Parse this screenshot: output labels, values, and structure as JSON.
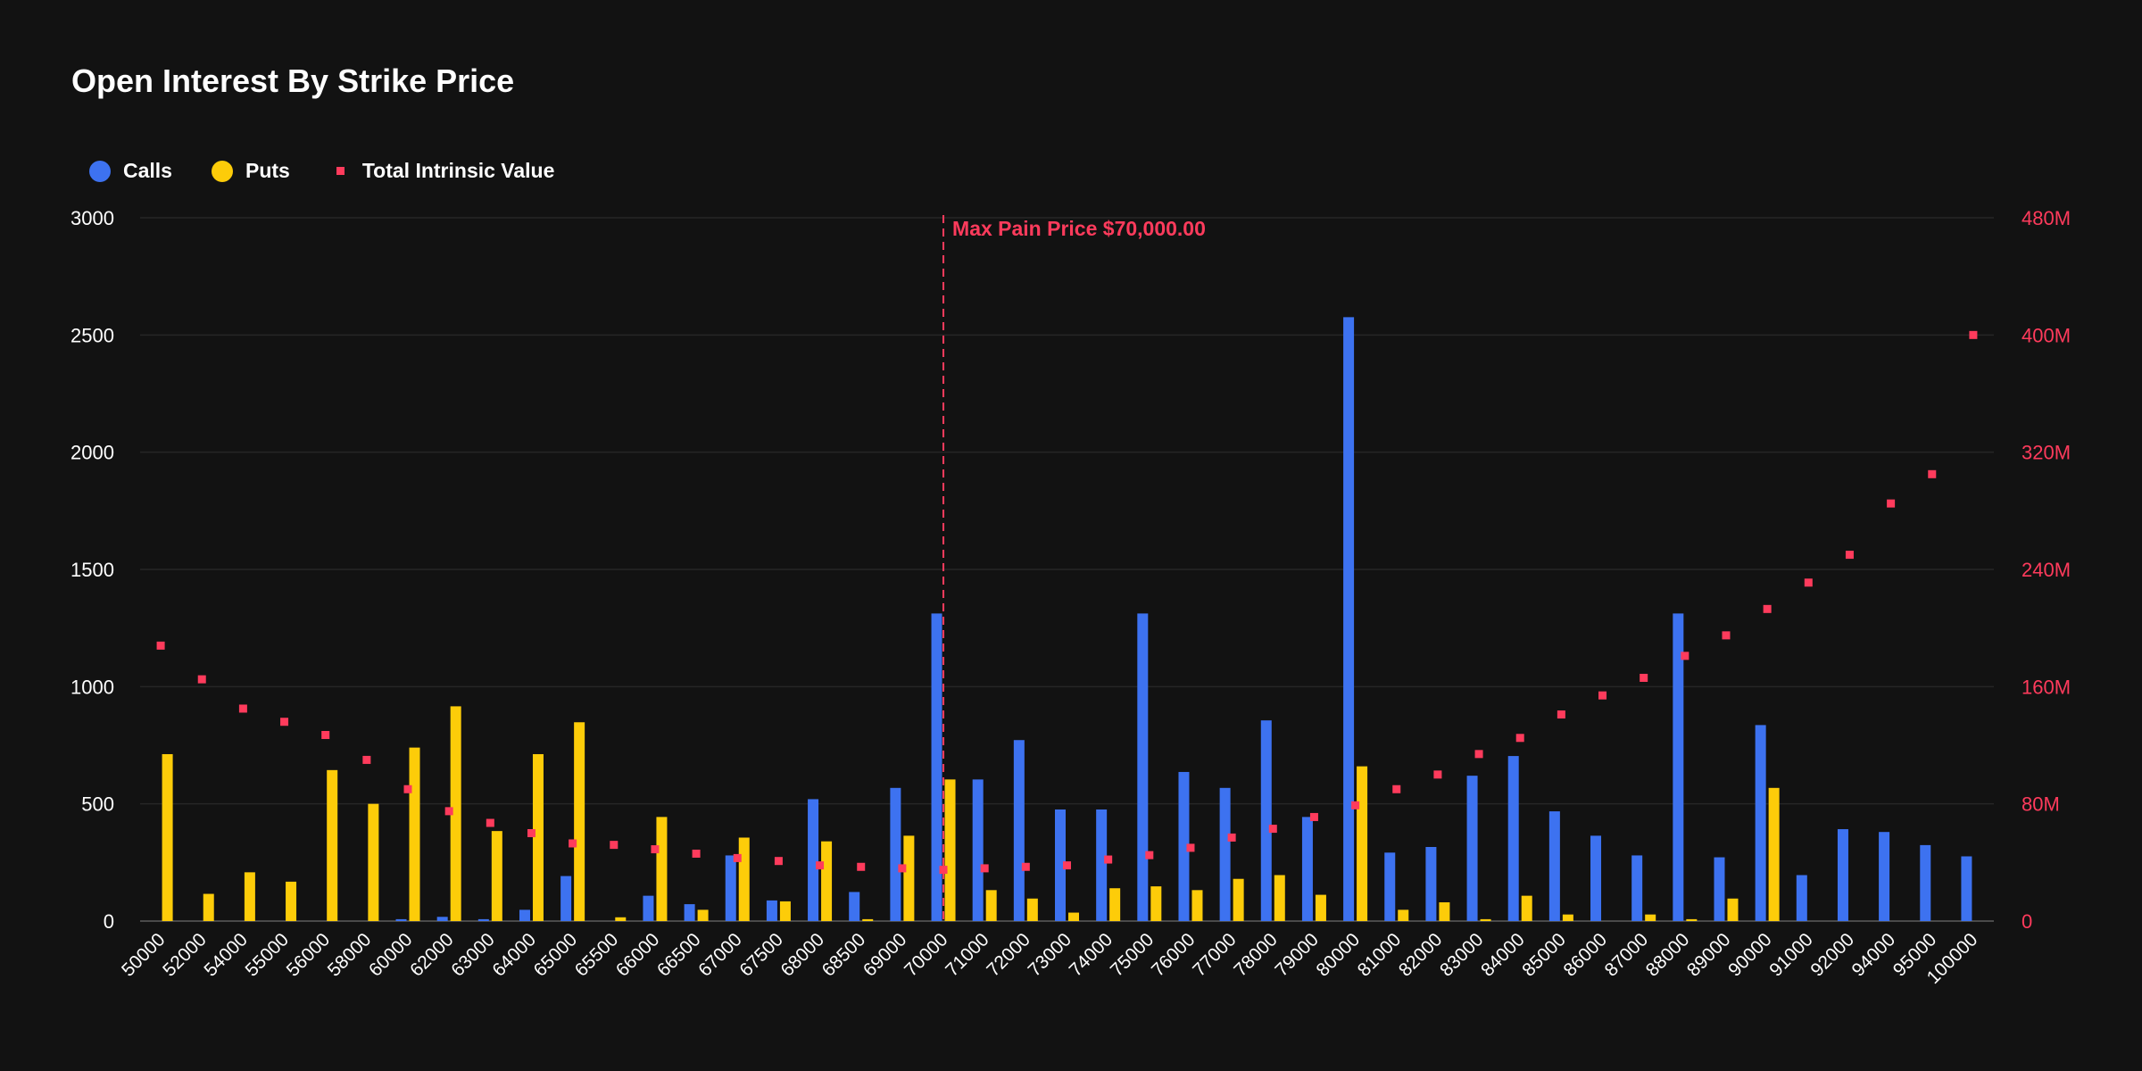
{
  "chart_data": {
    "type": "bar",
    "title": "Open Interest By Strike Price",
    "categories": [
      "50000",
      "52000",
      "54000",
      "55000",
      "56000",
      "58000",
      "60000",
      "62000",
      "63000",
      "64000",
      "65000",
      "65500",
      "66000",
      "66500",
      "67000",
      "67500",
      "68000",
      "68500",
      "69000",
      "70000",
      "71000",
      "72000",
      "73000",
      "74000",
      "75000",
      "76000",
      "77000",
      "78000",
      "79000",
      "80000",
      "81000",
      "82000",
      "83000",
      "84000",
      "85000",
      "86000",
      "87000",
      "88000",
      "89000",
      "90000",
      "91000",
      "92000",
      "94000",
      "95000",
      "100000"
    ],
    "series": [
      {
        "name": "Calls",
        "axis": "left",
        "color": "#3d72f0",
        "values": [
          0,
          0,
          0,
          0,
          0,
          0,
          8,
          18,
          8,
          48,
          192,
          0,
          108,
          72,
          280,
          88,
          520,
          124,
          568,
          1312,
          604,
          772,
          476,
          476,
          1312,
          636,
          568,
          856,
          444,
          2576,
          292,
          316,
          620,
          704,
          468,
          364,
          280,
          1312,
          272,
          836,
          196,
          392,
          380,
          324,
          276
        ]
      },
      {
        "name": "Puts",
        "axis": "left",
        "color": "#fdcc09",
        "values": [
          712,
          116,
          208,
          168,
          644,
          500,
          740,
          916,
          384,
          712,
          848,
          16,
          444,
          48,
          356,
          84,
          340,
          8,
          364,
          604,
          132,
          96,
          36,
          140,
          148,
          132,
          180,
          196,
          112,
          660,
          48,
          80,
          8,
          108,
          28,
          0,
          28,
          8,
          96,
          568,
          0,
          0,
          0,
          0,
          0
        ]
      },
      {
        "name": "Total Intrinsic Value",
        "axis": "right",
        "type": "scatter",
        "color": "#ff3b5c",
        "values": [
          188,
          165,
          145,
          136,
          127,
          110,
          90,
          75,
          67,
          60,
          53,
          52,
          49,
          46,
          43,
          41,
          38,
          37,
          36,
          35,
          36,
          37,
          38,
          42,
          45,
          50,
          57,
          63,
          71,
          79,
          90,
          100,
          114,
          125,
          141,
          154,
          166,
          181,
          195,
          213,
          231,
          250,
          285,
          305,
          400
        ]
      }
    ],
    "y_left": {
      "min": 0,
      "max": 3000,
      "ticks": [
        "0",
        "500",
        "1000",
        "1500",
        "2000",
        "2500",
        "3000"
      ]
    },
    "y_right": {
      "min": 0,
      "max": 480,
      "unit": "M",
      "ticks": [
        "0",
        "80M",
        "160M",
        "240M",
        "320M",
        "400M",
        "480M"
      ]
    },
    "annotation": {
      "label": "Max Pain Price $70,000.00",
      "category": "70000",
      "color": "#ff3b5c"
    },
    "grid": true,
    "legend_position": "top-left"
  }
}
